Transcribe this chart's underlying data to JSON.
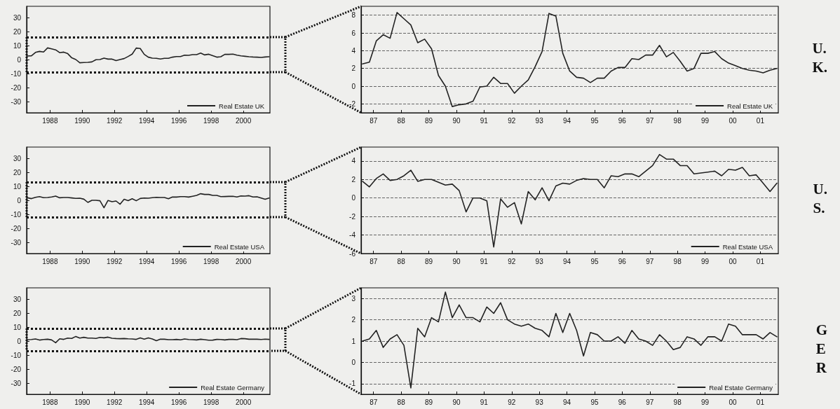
{
  "chart_data": [
    {
      "type": "line",
      "x": [
        1986.6,
        1986.85,
        1987.1,
        1987.35,
        1987.6,
        1987.85,
        1988.1,
        1988.35,
        1988.6,
        1988.85,
        1989.1,
        1989.35,
        1989.6,
        1989.85,
        1990.1,
        1990.35,
        1990.6,
        1990.85,
        1991.1,
        1991.35,
        1991.6,
        1991.85,
        1992.1,
        1992.35,
        1992.6,
        1992.85,
        1993.1,
        1993.35,
        1993.6,
        1993.85,
        1994.1,
        1994.35,
        1994.6,
        1994.85,
        1995.1,
        1995.35,
        1995.6,
        1995.85,
        1996.1,
        1996.35,
        1996.6,
        1996.85,
        1997.1,
        1997.35,
        1997.6,
        1997.85,
        1998.1,
        1998.35,
        1998.6,
        1998.85,
        1999.1,
        1999.35,
        1999.6,
        1999.85,
        2000.1,
        2000.35,
        2000.6,
        2000.85,
        2001.1,
        2001.35,
        2001.6
      ],
      "series": [
        {
          "name": "Real Estate UK",
          "color": "#222222",
          "values": [
            2.5,
            2.7,
            5.1,
            5.8,
            5.4,
            8.3,
            7.6,
            6.9,
            4.9,
            5.3,
            4.2,
            1.2,
            0.0,
            -2.3,
            -2.1,
            -2.0,
            -1.7,
            -0.1,
            0.0,
            1.0,
            0.3,
            0.3,
            -0.8,
            0.0,
            0.7,
            2.2,
            3.9,
            8.2,
            7.9,
            3.7,
            1.7,
            1.0,
            0.9,
            0.4,
            0.9,
            0.9,
            1.7,
            2.1,
            2.1,
            3.1,
            3.0,
            3.5,
            3.5,
            4.6,
            3.3,
            3.8,
            2.8,
            1.7,
            2.0,
            3.7,
            3.7,
            3.9,
            3.1,
            2.6,
            2.3,
            2.0,
            1.8,
            1.7,
            1.5,
            1.8,
            2.0
          ]
        }
      ],
      "xlim": [
        1986.55,
        2001.65
      ],
      "ylim": [
        -38,
        38
      ],
      "xticks": [
        1988,
        1990,
        1992,
        1994,
        1996,
        1998,
        2000
      ],
      "yticks": [
        -30,
        -20,
        -10,
        0,
        10,
        20,
        30
      ],
      "legend": "bottom right",
      "marker": "none",
      "line_style": "solid",
      "ref_lines": [
        {
          "axis": "y",
          "value": 16,
          "line_style": "dotted",
          "color": "#111111"
        },
        {
          "axis": "y",
          "value": -9,
          "line_style": "dotted",
          "color": "#111111"
        }
      ]
    },
    {
      "type": "line",
      "x": [
        1986.6,
        1986.85,
        1987.1,
        1987.35,
        1987.6,
        1987.85,
        1988.1,
        1988.35,
        1988.6,
        1988.85,
        1989.1,
        1989.35,
        1989.6,
        1989.85,
        1990.1,
        1990.35,
        1990.6,
        1990.85,
        1991.1,
        1991.35,
        1991.6,
        1991.85,
        1992.1,
        1992.35,
        1992.6,
        1992.85,
        1993.1,
        1993.35,
        1993.6,
        1993.85,
        1994.1,
        1994.35,
        1994.6,
        1994.85,
        1995.1,
        1995.35,
        1995.6,
        1995.85,
        1996.1,
        1996.35,
        1996.6,
        1996.85,
        1997.1,
        1997.35,
        1997.6,
        1997.85,
        1998.1,
        1998.35,
        1998.6,
        1998.85,
        1999.1,
        1999.35,
        1999.6,
        1999.85,
        2000.1,
        2000.35,
        2000.6,
        2000.85,
        2001.1,
        2001.35,
        2001.6
      ],
      "series": [
        {
          "name": "Real Estate UK",
          "color": "#222222",
          "values": [
            2.5,
            2.7,
            5.1,
            5.8,
            5.4,
            8.3,
            7.6,
            6.9,
            4.9,
            5.3,
            4.2,
            1.2,
            0.0,
            -2.3,
            -2.1,
            -2.0,
            -1.7,
            -0.1,
            0.0,
            1.0,
            0.3,
            0.3,
            -0.8,
            0.0,
            0.7,
            2.2,
            3.9,
            8.2,
            7.9,
            3.7,
            1.7,
            1.0,
            0.9,
            0.4,
            0.9,
            0.9,
            1.7,
            2.1,
            2.1,
            3.1,
            3.0,
            3.5,
            3.5,
            4.6,
            3.3,
            3.8,
            2.8,
            1.7,
            2.0,
            3.7,
            3.7,
            3.9,
            3.1,
            2.6,
            2.3,
            2.0,
            1.8,
            1.7,
            1.5,
            1.8,
            2.0
          ]
        }
      ],
      "xlim": [
        1986.55,
        2001.65
      ],
      "ylim": [
        -3,
        9
      ],
      "xticks": [
        {
          "value": 1987,
          "label": "87"
        },
        {
          "value": 1988,
          "label": "88"
        },
        {
          "value": 1989,
          "label": "89"
        },
        {
          "value": 1990,
          "label": "90"
        },
        {
          "value": 1991,
          "label": "91"
        },
        {
          "value": 1992,
          "label": "92"
        },
        {
          "value": 1993,
          "label": "93"
        },
        {
          "value": 1994,
          "label": "94"
        },
        {
          "value": 1995,
          "label": "95"
        },
        {
          "value": 1996,
          "label": "96"
        },
        {
          "value": 1997,
          "label": "97"
        },
        {
          "value": 1998,
          "label": "98"
        },
        {
          "value": 1999,
          "label": "99"
        },
        {
          "value": 2000,
          "label": "00"
        },
        {
          "value": 2001,
          "label": "01"
        }
      ],
      "yticks": [
        -2,
        0,
        2,
        4,
        6,
        8
      ],
      "grid": "y",
      "legend": "bottom right",
      "marker": "none",
      "line_style": "solid",
      "annotations": [
        "U.\nK."
      ]
    },
    {
      "type": "line",
      "x": [
        1986.6,
        1986.85,
        1987.1,
        1987.35,
        1987.6,
        1987.85,
        1988.1,
        1988.35,
        1988.6,
        1988.85,
        1989.1,
        1989.35,
        1989.6,
        1989.85,
        1990.1,
        1990.35,
        1990.6,
        1990.85,
        1991.1,
        1991.35,
        1991.6,
        1991.85,
        1992.1,
        1992.35,
        1992.6,
        1992.85,
        1993.1,
        1993.35,
        1993.6,
        1993.85,
        1994.1,
        1994.35,
        1994.6,
        1994.85,
        1995.1,
        1995.35,
        1995.6,
        1995.85,
        1996.1,
        1996.35,
        1996.6,
        1996.85,
        1997.1,
        1997.35,
        1997.6,
        1997.85,
        1998.1,
        1998.35,
        1998.6,
        1998.85,
        1999.1,
        1999.35,
        1999.6,
        1999.85,
        2000.1,
        2000.35,
        2000.6,
        2000.85,
        2001.1,
        2001.35,
        2001.6
      ],
      "series": [
        {
          "name": "Real Estate USA",
          "color": "#222222",
          "values": [
            1.8,
            1.2,
            2.1,
            2.6,
            1.9,
            2.0,
            2.4,
            3.0,
            1.8,
            2.0,
            2.0,
            1.7,
            1.4,
            1.5,
            0.8,
            -1.5,
            0.0,
            0.0,
            -0.3,
            -5.3,
            -0.1,
            -1.0,
            -0.5,
            -2.8,
            0.7,
            -0.2,
            1.1,
            -0.3,
            1.3,
            1.6,
            1.5,
            1.9,
            2.1,
            2.0,
            2.0,
            1.1,
            2.4,
            2.3,
            2.6,
            2.6,
            2.3,
            2.9,
            3.5,
            4.7,
            4.2,
            4.2,
            3.5,
            3.5,
            2.6,
            2.7,
            2.8,
            2.9,
            2.4,
            3.1,
            3.0,
            3.3,
            2.4,
            2.5,
            1.6,
            0.7,
            1.6
          ]
        }
      ],
      "xlim": [
        1986.55,
        2001.65
      ],
      "ylim": [
        -38,
        38
      ],
      "xticks": [
        1988,
        1990,
        1992,
        1994,
        1996,
        1998,
        2000
      ],
      "yticks": [
        -30,
        -20,
        -10,
        0,
        10,
        20,
        30
      ],
      "legend": "bottom right",
      "marker": "none",
      "line_style": "solid",
      "ref_lines": [
        {
          "axis": "y",
          "value": 13,
          "line_style": "dotted",
          "color": "#111111"
        },
        {
          "axis": "y",
          "value": -12,
          "line_style": "dotted",
          "color": "#111111"
        }
      ]
    },
    {
      "type": "line",
      "x": [
        1986.6,
        1986.85,
        1987.1,
        1987.35,
        1987.6,
        1987.85,
        1988.1,
        1988.35,
        1988.6,
        1988.85,
        1989.1,
        1989.35,
        1989.6,
        1989.85,
        1990.1,
        1990.35,
        1990.6,
        1990.85,
        1991.1,
        1991.35,
        1991.6,
        1991.85,
        1992.1,
        1992.35,
        1992.6,
        1992.85,
        1993.1,
        1993.35,
        1993.6,
        1993.85,
        1994.1,
        1994.35,
        1994.6,
        1994.85,
        1995.1,
        1995.35,
        1995.6,
        1995.85,
        1996.1,
        1996.35,
        1996.6,
        1996.85,
        1997.1,
        1997.35,
        1997.6,
        1997.85,
        1998.1,
        1998.35,
        1998.6,
        1998.85,
        1999.1,
        1999.35,
        1999.6,
        1999.85,
        2000.1,
        2000.35,
        2000.6,
        2000.85,
        2001.1,
        2001.35,
        2001.6
      ],
      "series": [
        {
          "name": "Real Estate USA",
          "color": "#222222",
          "values": [
            1.8,
            1.2,
            2.1,
            2.6,
            1.9,
            2.0,
            2.4,
            3.0,
            1.8,
            2.0,
            2.0,
            1.7,
            1.4,
            1.5,
            0.8,
            -1.5,
            0.0,
            0.0,
            -0.3,
            -5.3,
            -0.1,
            -1.0,
            -0.5,
            -2.8,
            0.7,
            -0.2,
            1.1,
            -0.3,
            1.3,
            1.6,
            1.5,
            1.9,
            2.1,
            2.0,
            2.0,
            1.1,
            2.4,
            2.3,
            2.6,
            2.6,
            2.3,
            2.9,
            3.5,
            4.7,
            4.2,
            4.2,
            3.5,
            3.5,
            2.6,
            2.7,
            2.8,
            2.9,
            2.4,
            3.1,
            3.0,
            3.3,
            2.4,
            2.5,
            1.6,
            0.7,
            1.6
          ]
        }
      ],
      "xlim": [
        1986.55,
        2001.65
      ],
      "ylim": [
        -6,
        5.5
      ],
      "xticks": [
        {
          "value": 1987,
          "label": "87"
        },
        {
          "value": 1988,
          "label": "88"
        },
        {
          "value": 1989,
          "label": "89"
        },
        {
          "value": 1990,
          "label": "90"
        },
        {
          "value": 1991,
          "label": "91"
        },
        {
          "value": 1992,
          "label": "92"
        },
        {
          "value": 1993,
          "label": "93"
        },
        {
          "value": 1994,
          "label": "94"
        },
        {
          "value": 1995,
          "label": "95"
        },
        {
          "value": 1996,
          "label": "96"
        },
        {
          "value": 1997,
          "label": "97"
        },
        {
          "value": 1998,
          "label": "98"
        },
        {
          "value": 1999,
          "label": "99"
        },
        {
          "value": 2000,
          "label": "00"
        },
        {
          "value": 2001,
          "label": "01"
        }
      ],
      "yticks": [
        -6,
        -4,
        -2,
        0,
        2,
        4
      ],
      "grid": "y",
      "legend": "bottom right",
      "marker": "none",
      "line_style": "solid",
      "annotations": [
        "U.\nS."
      ]
    },
    {
      "type": "line",
      "x": [
        1986.6,
        1986.85,
        1987.1,
        1987.35,
        1987.6,
        1987.85,
        1988.1,
        1988.35,
        1988.6,
        1988.85,
        1989.1,
        1989.35,
        1989.6,
        1989.85,
        1990.1,
        1990.35,
        1990.6,
        1990.85,
        1991.1,
        1991.35,
        1991.6,
        1991.85,
        1992.1,
        1992.35,
        1992.6,
        1992.85,
        1993.1,
        1993.35,
        1993.6,
        1993.85,
        1994.1,
        1994.35,
        1994.6,
        1994.85,
        1995.1,
        1995.35,
        1995.6,
        1995.85,
        1996.1,
        1996.35,
        1996.6,
        1996.85,
        1997.1,
        1997.35,
        1997.6,
        1997.85,
        1998.1,
        1998.35,
        1998.6,
        1998.85,
        1999.1,
        1999.35,
        1999.6,
        1999.85,
        2000.1,
        2000.35,
        2000.6,
        2000.85,
        2001.1,
        2001.35,
        2001.6
      ],
      "series": [
        {
          "name": "Real Estate Germany",
          "color": "#222222",
          "values": [
            1.0,
            1.1,
            1.5,
            0.7,
            1.1,
            1.3,
            0.8,
            -1.2,
            1.6,
            1.2,
            2.1,
            1.9,
            3.3,
            2.1,
            2.7,
            2.1,
            2.1,
            1.9,
            2.6,
            2.3,
            2.8,
            2.0,
            1.8,
            1.7,
            1.8,
            1.6,
            1.5,
            1.2,
            2.3,
            1.4,
            2.3,
            1.5,
            0.3,
            1.4,
            1.3,
            1.0,
            1.0,
            1.2,
            0.9,
            1.5,
            1.1,
            1.0,
            0.8,
            1.3,
            1.0,
            0.6,
            0.7,
            1.2,
            1.1,
            0.8,
            1.2,
            1.2,
            1.0,
            1.8,
            1.7,
            1.3,
            1.3,
            1.3,
            1.1,
            1.4,
            1.2
          ]
        }
      ],
      "xlim": [
        1986.55,
        2001.65
      ],
      "ylim": [
        -38,
        38
      ],
      "xticks": [
        1988,
        1990,
        1992,
        1994,
        1996,
        1998,
        2000
      ],
      "yticks": [
        -30,
        -20,
        -10,
        0,
        10,
        20,
        30
      ],
      "legend": "bottom right",
      "marker": "none",
      "line_style": "solid",
      "ref_lines": [
        {
          "axis": "y",
          "value": 9,
          "line_style": "dotted",
          "color": "#111111"
        },
        {
          "axis": "y",
          "value": -7,
          "line_style": "dotted",
          "color": "#111111"
        }
      ]
    },
    {
      "type": "line",
      "x": [
        1986.6,
        1986.85,
        1987.1,
        1987.35,
        1987.6,
        1987.85,
        1988.1,
        1988.35,
        1988.6,
        1988.85,
        1989.1,
        1989.35,
        1989.6,
        1989.85,
        1990.1,
        1990.35,
        1990.6,
        1990.85,
        1991.1,
        1991.35,
        1991.6,
        1991.85,
        1992.1,
        1992.35,
        1992.6,
        1992.85,
        1993.1,
        1993.35,
        1993.6,
        1993.85,
        1994.1,
        1994.35,
        1994.6,
        1994.85,
        1995.1,
        1995.35,
        1995.6,
        1995.85,
        1996.1,
        1996.35,
        1996.6,
        1996.85,
        1997.1,
        1997.35,
        1997.6,
        1997.85,
        1998.1,
        1998.35,
        1998.6,
        1998.85,
        1999.1,
        1999.35,
        1999.6,
        1999.85,
        2000.1,
        2000.35,
        2000.6,
        2000.85,
        2001.1,
        2001.35,
        2001.6
      ],
      "series": [
        {
          "name": "Real Estate Germany",
          "color": "#222222",
          "values": [
            1.0,
            1.1,
            1.5,
            0.7,
            1.1,
            1.3,
            0.8,
            -1.2,
            1.6,
            1.2,
            2.1,
            1.9,
            3.3,
            2.1,
            2.7,
            2.1,
            2.1,
            1.9,
            2.6,
            2.3,
            2.8,
            2.0,
            1.8,
            1.7,
            1.8,
            1.6,
            1.5,
            1.2,
            2.3,
            1.4,
            2.3,
            1.5,
            0.3,
            1.4,
            1.3,
            1.0,
            1.0,
            1.2,
            0.9,
            1.5,
            1.1,
            1.0,
            0.8,
            1.3,
            1.0,
            0.6,
            0.7,
            1.2,
            1.1,
            0.8,
            1.2,
            1.2,
            1.0,
            1.8,
            1.7,
            1.3,
            1.3,
            1.3,
            1.1,
            1.4,
            1.2
          ]
        }
      ],
      "xlim": [
        1986.55,
        2001.65
      ],
      "ylim": [
        -1.5,
        3.5
      ],
      "xticks": [
        {
          "value": 1987,
          "label": "87"
        },
        {
          "value": 1988,
          "label": "88"
        },
        {
          "value": 1989,
          "label": "89"
        },
        {
          "value": 1990,
          "label": "90"
        },
        {
          "value": 1991,
          "label": "91"
        },
        {
          "value": 1992,
          "label": "92"
        },
        {
          "value": 1993,
          "label": "93"
        },
        {
          "value": 1994,
          "label": "94"
        },
        {
          "value": 1995,
          "label": "95"
        },
        {
          "value": 1996,
          "label": "96"
        },
        {
          "value": 1997,
          "label": "97"
        },
        {
          "value": 1998,
          "label": "98"
        },
        {
          "value": 1999,
          "label": "99"
        },
        {
          "value": 2000,
          "label": "00"
        },
        {
          "value": 2001,
          "label": "01"
        }
      ],
      "yticks": [
        -1,
        0,
        1,
        2,
        3
      ],
      "grid": "y",
      "legend": "bottom right",
      "marker": "none",
      "line_style": "solid",
      "annotations": [
        "G\nE\nR"
      ]
    }
  ]
}
